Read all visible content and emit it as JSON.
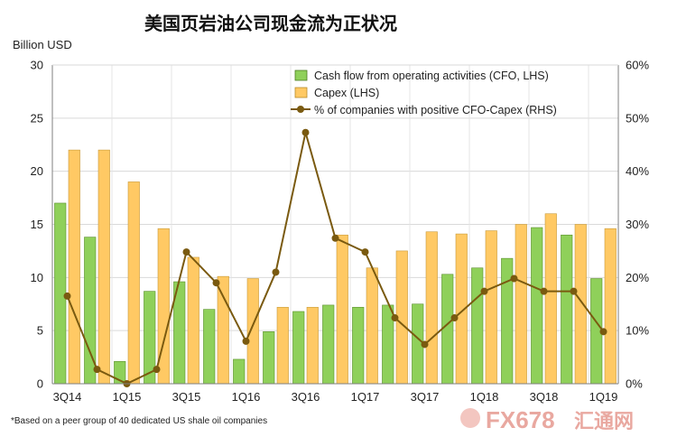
{
  "chart_data": {
    "type": "bar",
    "title": "美国页岩油公司现金流为正状况",
    "ylabel_left": "Billion USD",
    "ylim_left": [
      0,
      30
    ],
    "yticks_left": [
      "0",
      "5",
      "10",
      "15",
      "20",
      "25",
      "30"
    ],
    "ylim_right": [
      0,
      60
    ],
    "yticks_right": [
      "0%",
      "10%",
      "20%",
      "30%",
      "40%",
      "50%",
      "60%"
    ],
    "categories": [
      "3Q14",
      "4Q14",
      "1Q15",
      "2Q15",
      "3Q15",
      "4Q15",
      "1Q16",
      "2Q16",
      "3Q16",
      "4Q16",
      "1Q17",
      "2Q17",
      "3Q17",
      "4Q17",
      "1Q18",
      "2Q18",
      "3Q18",
      "4Q18",
      "1Q19"
    ],
    "x_tick_labels": [
      "3Q14",
      "1Q15",
      "3Q15",
      "1Q16",
      "3Q16",
      "1Q17",
      "3Q17",
      "1Q18",
      "3Q18",
      "1Q19"
    ],
    "series": [
      {
        "name": "Cash flow from operating activities (CFO, LHS)",
        "type": "bar",
        "axis": "left",
        "color": "#8fd05a",
        "values": [
          17.0,
          13.8,
          2.1,
          8.7,
          9.6,
          7.0,
          2.3,
          4.9,
          6.8,
          7.4,
          7.2,
          7.4,
          7.5,
          10.3,
          10.9,
          11.8,
          14.7,
          14.0,
          9.9
        ]
      },
      {
        "name": "Capex (LHS)",
        "type": "bar",
        "axis": "left",
        "color": "#ffc964",
        "values": [
          22.0,
          22.0,
          19.0,
          14.6,
          11.9,
          10.1,
          9.9,
          7.2,
          7.2,
          14.0,
          10.9,
          12.5,
          14.3,
          14.1,
          14.4,
          15.0,
          16.0,
          15.0,
          14.6
        ]
      },
      {
        "name": "% of companies with positive CFO-Capex (RHS)",
        "type": "line",
        "axis": "right",
        "color": "#7a5a10",
        "values": [
          16.5,
          2.7,
          0.0,
          2.7,
          24.8,
          19.0,
          8.0,
          21.0,
          47.3,
          27.4,
          24.8,
          12.4,
          7.4,
          12.4,
          17.4,
          19.8,
          17.4,
          17.4,
          9.8
        ]
      }
    ],
    "legend_position": "top-right",
    "grid": true,
    "footnote": "*Based on a peer group of 40 dedicated US shale oil companies"
  },
  "watermark": {
    "text_a": "FX678",
    "text_b": "汇通网"
  }
}
